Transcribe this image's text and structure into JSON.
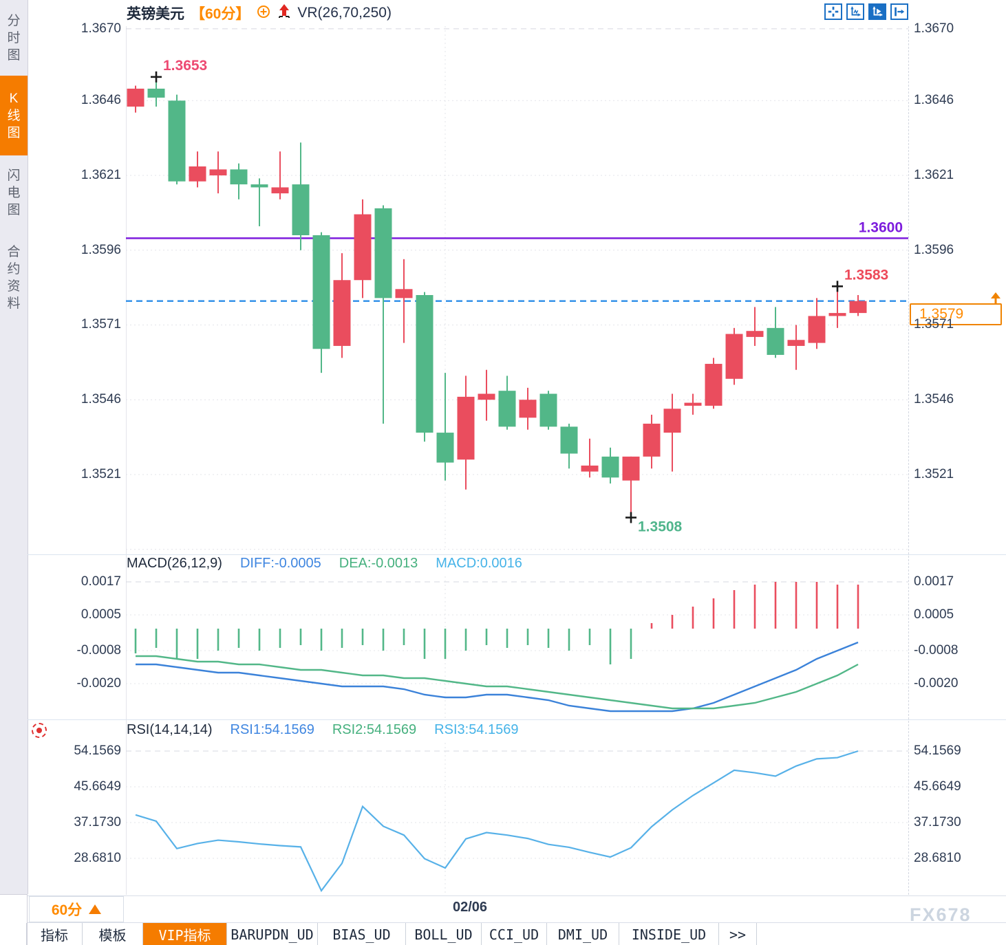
{
  "sidebar": {
    "items": [
      {
        "label": "分时图",
        "active": false
      },
      {
        "label": "K线图",
        "active": true
      },
      {
        "label": "闪电图",
        "active": false
      },
      {
        "label": "合约资料",
        "active": false
      }
    ]
  },
  "header": {
    "symbol": "英镑美元",
    "period": "【60分】",
    "indicator": "VR(26,70,250)",
    "accent_orange": "#ff8a00",
    "arrow_color": "#e02822"
  },
  "toolbar": {
    "icons": [
      {
        "name": "crosshair-icon",
        "active": false
      },
      {
        "name": "axis-zoom-icon",
        "active": false
      },
      {
        "name": "axis-play-icon",
        "active": true
      },
      {
        "name": "exit-right-icon",
        "active": false
      }
    ],
    "icon_color": "#1a6fc4"
  },
  "price_box": {
    "value": "1.3579",
    "color": "#ff8a00",
    "border": "#f08300"
  },
  "bottom": {
    "period_label": "60分",
    "date_label": "02/06",
    "watermark": "FX678",
    "tabs": [
      {
        "label": "指标",
        "active": false
      },
      {
        "label": "模板",
        "active": false
      },
      {
        "label": "VIP指标",
        "active": true
      },
      {
        "label": "BARUPDN_UD",
        "active": false
      },
      {
        "label": "BIAS_UD",
        "active": false
      },
      {
        "label": "BOLL_UD",
        "active": false
      },
      {
        "label": "CCI_UD",
        "active": false
      },
      {
        "label": "DMI_UD",
        "active": false
      },
      {
        "label": "INSIDE_UD",
        "active": false
      },
      {
        "label": ">>",
        "active": false
      }
    ]
  },
  "chart_data": [
    {
      "type": "candlestick",
      "id": "price",
      "up_color": "#ea4d5e",
      "down_color": "#52b788",
      "ylim": [
        1.34957,
        1.36709
      ],
      "yticks": [
        {
          "v": 1.367,
          "label": "1.3670"
        },
        {
          "v": 1.3646,
          "label": "1.3646"
        },
        {
          "v": 1.3621,
          "label": "1.3621"
        },
        {
          "v": 1.3596,
          "label": "1.3596"
        },
        {
          "v": 1.3571,
          "label": "1.3571"
        },
        {
          "v": 1.3546,
          "label": "1.3546"
        },
        {
          "v": 1.3521,
          "label": "1.3521"
        }
      ],
      "grid_extra": [
        1.3496
      ],
      "candles": [
        [
          1.3644,
          1.3651,
          1.3642,
          1.365
        ],
        [
          1.365,
          1.3653,
          1.3644,
          1.3647
        ],
        [
          1.3646,
          1.3648,
          1.3618,
          1.3619
        ],
        [
          1.3619,
          1.3629,
          1.3617,
          1.3624
        ],
        [
          1.3621,
          1.3629,
          1.3615,
          1.3623
        ],
        [
          1.3623,
          1.3625,
          1.3613,
          1.3618
        ],
        [
          1.3618,
          1.362,
          1.3604,
          1.3617
        ],
        [
          1.3615,
          1.3629,
          1.3613,
          1.3617
        ],
        [
          1.3618,
          1.3632,
          1.3596,
          1.3601
        ],
        [
          1.3601,
          1.3602,
          1.3555,
          1.3563
        ],
        [
          1.3564,
          1.3595,
          1.356,
          1.3586
        ],
        [
          1.3586,
          1.3613,
          1.358,
          1.3608
        ],
        [
          1.361,
          1.3611,
          1.3538,
          1.358
        ],
        [
          1.358,
          1.3593,
          1.3565,
          1.3583
        ],
        [
          1.3581,
          1.3582,
          1.3532,
          1.3535
        ],
        [
          1.3535,
          1.3555,
          1.3519,
          1.3525
        ],
        [
          1.3526,
          1.3554,
          1.3516,
          1.3547
        ],
        [
          1.3546,
          1.3556,
          1.3539,
          1.3548
        ],
        [
          1.3549,
          1.3554,
          1.3536,
          1.3537
        ],
        [
          1.354,
          1.355,
          1.3536,
          1.3546
        ],
        [
          1.3548,
          1.3549,
          1.3536,
          1.3537
        ],
        [
          1.3537,
          1.3538,
          1.3523,
          1.3528
        ],
        [
          1.3522,
          1.3533,
          1.352,
          1.3524
        ],
        [
          1.3527,
          1.353,
          1.3518,
          1.352
        ],
        [
          1.3519,
          1.3527,
          1.3508,
          1.3527
        ],
        [
          1.3527,
          1.3541,
          1.3523,
          1.3538
        ],
        [
          1.3535,
          1.3548,
          1.3522,
          1.3543
        ],
        [
          1.3544,
          1.3548,
          1.3541,
          1.3545
        ],
        [
          1.3544,
          1.356,
          1.3543,
          1.3558
        ],
        [
          1.3553,
          1.357,
          1.3551,
          1.3568
        ],
        [
          1.3567,
          1.3577,
          1.3564,
          1.3569
        ],
        [
          1.357,
          1.3577,
          1.356,
          1.3561
        ],
        [
          1.3564,
          1.3571,
          1.3556,
          1.3566
        ],
        [
          1.3565,
          1.358,
          1.3563,
          1.3574
        ],
        [
          1.3574,
          1.3583,
          1.357,
          1.3575
        ],
        [
          1.3575,
          1.3581,
          1.3574,
          1.3579
        ]
      ],
      "annotations": [
        {
          "index": 1,
          "anchor": "high",
          "text": "1.3653",
          "color": "#ed4a72"
        },
        {
          "index": 24,
          "anchor": "low",
          "text": "1.3508",
          "color": "#50b58c"
        },
        {
          "index": 34,
          "anchor": "high",
          "text": "1.3583",
          "color": "#ed4a5a"
        }
      ],
      "overlays": [
        {
          "price": 1.36,
          "color": "#7d1cdd",
          "dash": "",
          "label": "1.3600"
        },
        {
          "price": 1.3579,
          "color": "#2b8ce8",
          "dash": "9 6",
          "label": ""
        }
      ],
      "xgrid_index": 15
    },
    {
      "type": "bar+line",
      "id": "macd",
      "title": "MACD(26,12,9)",
      "legend": [
        {
          "text": "DIFF:-0.0005",
          "color": "#3f86e0"
        },
        {
          "text": "DEA:-0.0013",
          "color": "#45b07e"
        },
        {
          "text": "MACD:0.0016",
          "color": "#45b3e8"
        }
      ],
      "ylim": [
        -0.00325,
        0.0019
      ],
      "yticks": [
        {
          "v": 0.0017,
          "label": "0.0017"
        },
        {
          "v": 0.0005,
          "label": "0.0005"
        },
        {
          "v": -0.0008,
          "label": "-0.0008"
        },
        {
          "v": -0.002,
          "label": "-0.0020"
        }
      ],
      "hist": [
        -0.0009,
        -0.0007,
        -0.0011,
        -0.0011,
        -0.0008,
        -0.0007,
        -0.0008,
        -0.0007,
        -0.0006,
        -0.0008,
        -0.0007,
        -0.0006,
        -0.0008,
        -0.0006,
        -0.0011,
        -0.0011,
        -0.0008,
        -0.0006,
        -0.0007,
        -0.0006,
        -0.0007,
        -0.0008,
        -0.0006,
        -0.0013,
        -0.0011,
        0.0002,
        0.0005,
        0.0008,
        0.0011,
        0.0014,
        0.0016,
        0.0017,
        0.0017,
        0.0017,
        0.0016,
        0.0016
      ],
      "diff": [
        -0.0013,
        -0.0013,
        -0.0014,
        -0.0015,
        -0.0016,
        -0.0016,
        -0.0017,
        -0.0018,
        -0.0019,
        -0.002,
        -0.0021,
        -0.0021,
        -0.0021,
        -0.0022,
        -0.0024,
        -0.0025,
        -0.0025,
        -0.0024,
        -0.0024,
        -0.0025,
        -0.0026,
        -0.0028,
        -0.0029,
        -0.003,
        -0.003,
        -0.003,
        -0.003,
        -0.0029,
        -0.0027,
        -0.0024,
        -0.0021,
        -0.0018,
        -0.0015,
        -0.0011,
        -0.0008,
        -0.0005
      ],
      "dea": [
        -0.001,
        -0.001,
        -0.0011,
        -0.0012,
        -0.0012,
        -0.0013,
        -0.0013,
        -0.0014,
        -0.0015,
        -0.0015,
        -0.0016,
        -0.0017,
        -0.0017,
        -0.0018,
        -0.0018,
        -0.0019,
        -0.002,
        -0.0021,
        -0.0021,
        -0.0022,
        -0.0023,
        -0.0024,
        -0.0025,
        -0.0026,
        -0.0027,
        -0.0028,
        -0.0029,
        -0.0029,
        -0.0029,
        -0.0028,
        -0.0027,
        -0.0025,
        -0.0023,
        -0.002,
        -0.0017,
        -0.0013
      ],
      "bar_up_color": "#ea4d5e",
      "bar_down_color": "#52b788",
      "diff_color": "#3b82d9",
      "dea_color": "#52b788"
    },
    {
      "type": "line",
      "id": "rsi",
      "title": "RSI(14,14,14)",
      "legend": [
        {
          "text": "RSI1:54.1569",
          "color": "#3f86e0"
        },
        {
          "text": "RSI2:54.1569",
          "color": "#45b07e"
        },
        {
          "text": "RSI3:54.1569",
          "color": "#45b3e8"
        }
      ],
      "ylim": [
        20.19,
        56.117
      ],
      "yticks": [
        {
          "v": 54.1569,
          "label": "54.1569"
        },
        {
          "v": 45.6649,
          "label": "45.6649"
        },
        {
          "v": 37.173,
          "label": "37.1730"
        },
        {
          "v": 28.681,
          "label": "28.6810"
        }
      ],
      "values": [
        39.0,
        37.5,
        31.0,
        32.2,
        33.0,
        32.6,
        32.1,
        31.7,
        31.4,
        21.0,
        27.5,
        41.0,
        36.3,
        34.2,
        28.6,
        26.4,
        33.3,
        34.8,
        34.2,
        33.4,
        32.0,
        31.3,
        30.1,
        29.0,
        31.2,
        36.2,
        40.2,
        43.6,
        46.6,
        49.6,
        49.0,
        48.2,
        50.6,
        52.3,
        52.6,
        54.1569
      ],
      "line_color": "#57b1e8"
    }
  ]
}
